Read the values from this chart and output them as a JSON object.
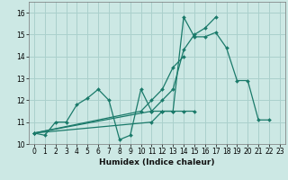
{
  "xlabel": "Humidex (Indice chaleur)",
  "ylabel": "",
  "bg_color": "#cce8e4",
  "grid_color": "#aad0cc",
  "line_color": "#1a7a6a",
  "xlim": [
    -0.5,
    23.5
  ],
  "ylim": [
    10.0,
    16.5
  ],
  "yticks": [
    10,
    11,
    12,
    13,
    14,
    15,
    16
  ],
  "xticks": [
    0,
    1,
    2,
    3,
    4,
    5,
    6,
    7,
    8,
    9,
    10,
    11,
    12,
    13,
    14,
    15,
    16,
    17,
    18,
    19,
    20,
    21,
    22,
    23
  ],
  "lines": [
    {
      "x": [
        0,
        1,
        2,
        3,
        4,
        5,
        6,
        7,
        8,
        9,
        10,
        11,
        12,
        13,
        14,
        15,
        16,
        17,
        18,
        19,
        20,
        21,
        22
      ],
      "y": [
        10.5,
        10.4,
        11.0,
        11.0,
        11.8,
        12.1,
        12.5,
        12.0,
        10.2,
        10.4,
        12.5,
        11.5,
        11.5,
        11.5,
        15.8,
        14.9,
        14.9,
        15.1,
        14.4,
        12.9,
        12.9,
        11.1,
        11.1
      ]
    },
    {
      "x": [
        0,
        11,
        12,
        13,
        14,
        15,
        16,
        17
      ],
      "y": [
        10.5,
        11.5,
        12.0,
        12.5,
        14.3,
        15.0,
        15.3,
        15.8
      ]
    },
    {
      "x": [
        0,
        11,
        12,
        13,
        14,
        15
      ],
      "y": [
        10.5,
        11.0,
        11.5,
        11.5,
        11.5,
        11.5
      ]
    },
    {
      "x": [
        0,
        10,
        11,
        12,
        13,
        14
      ],
      "y": [
        10.5,
        11.5,
        12.0,
        12.5,
        13.5,
        14.0
      ]
    }
  ]
}
